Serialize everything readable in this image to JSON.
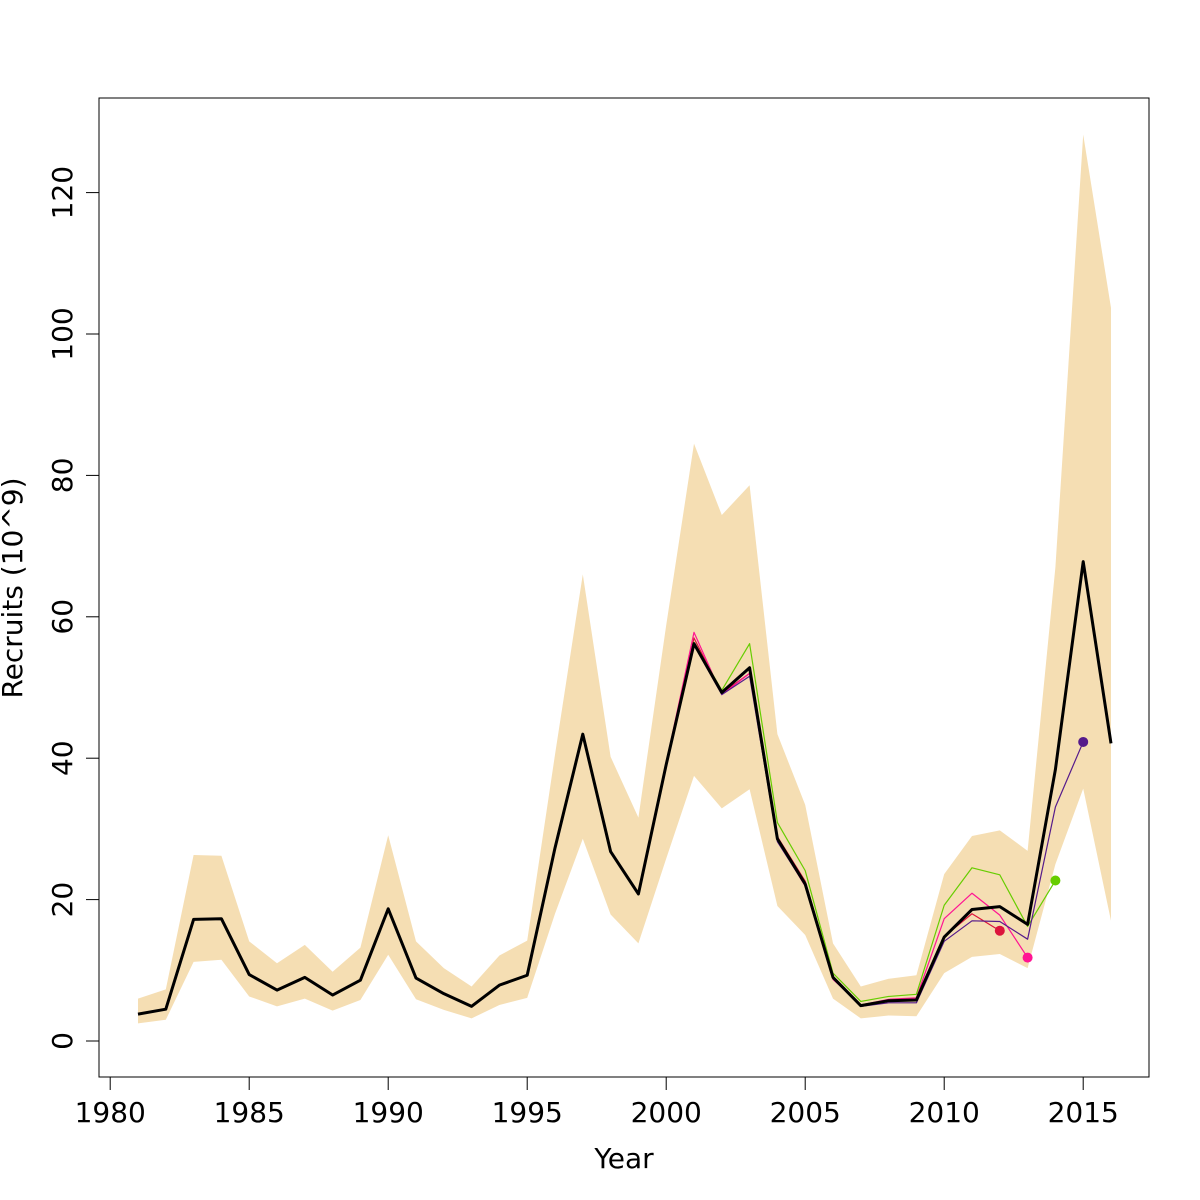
{
  "chart_data": {
    "type": "line",
    "title": "",
    "xlabel": "Year",
    "ylabel": "Recruits (10^9)",
    "xlim": [
      1980,
      2016
    ],
    "ylim": [
      0,
      130
    ],
    "xticks": [
      1980,
      1985,
      1990,
      1995,
      2000,
      2005,
      2010,
      2015
    ],
    "yticks": [
      0,
      20,
      40,
      60,
      80,
      100,
      120
    ],
    "grid": false,
    "legend": "none",
    "band": {
      "color": "#f5deb3",
      "x": [
        1981,
        1982,
        1983,
        1984,
        1985,
        1986,
        1987,
        1988,
        1989,
        1990,
        1991,
        1992,
        1993,
        1994,
        1995,
        1996,
        1997,
        1998,
        1999,
        2000,
        2001,
        2002,
        2003,
        2004,
        2005,
        2006,
        2007,
        2008,
        2009,
        2010,
        2011,
        2012,
        2013,
        2014,
        2015,
        2016
      ],
      "lower": [
        2.5,
        3.0,
        11.2,
        11.5,
        6.3,
        4.9,
        6.0,
        4.3,
        5.8,
        12.2,
        5.9,
        4.4,
        3.2,
        5.1,
        6.1,
        18.0,
        28.6,
        17.9,
        13.8,
        25.8,
        37.5,
        32.9,
        35.6,
        19.1,
        15.0,
        6.0,
        3.2,
        3.6,
        3.5,
        9.6,
        11.9,
        12.3,
        10.3,
        25.0,
        35.7,
        17.0
      ],
      "upper": [
        6.0,
        7.3,
        26.3,
        26.2,
        14.1,
        11.0,
        13.6,
        9.8,
        13.2,
        29.1,
        14.1,
        10.3,
        7.7,
        12.1,
        14.2,
        40.5,
        66.0,
        40.2,
        31.6,
        58.8,
        84.5,
        74.4,
        78.6,
        43.4,
        33.4,
        13.8,
        7.7,
        8.8,
        9.3,
        23.6,
        29.0,
        29.8,
        26.9,
        67.0,
        128.2,
        103.7
      ]
    },
    "series": [
      {
        "color": "#000000",
        "x": [
          1981,
          1982,
          1983,
          1984,
          1985,
          1986,
          1987,
          1988,
          1989,
          1990,
          1991,
          1992,
          1993,
          1994,
          1995,
          1996,
          1997,
          1998,
          1999,
          2000,
          2001,
          2002,
          2003,
          2004,
          2005,
          2006,
          2007,
          2008,
          2009,
          2010,
          2011,
          2012,
          2013,
          2014,
          2015,
          2016
        ],
        "values": [
          3.8,
          4.5,
          17.2,
          17.3,
          9.4,
          7.2,
          9.0,
          6.5,
          8.6,
          18.7,
          8.9,
          6.7,
          4.9,
          7.9,
          9.3,
          27.3,
          43.4,
          26.8,
          20.8,
          39.1,
          56.2,
          49.3,
          52.8,
          28.6,
          22.2,
          9.0,
          5.0,
          5.7,
          5.8,
          14.7,
          18.6,
          19.0,
          16.5,
          38.4,
          67.8,
          42.1
        ]
      },
      {
        "color": "#dc143c",
        "x": [
          1981,
          1982,
          1983,
          1984,
          1985,
          1986,
          1987,
          1988,
          1989,
          1990,
          1991,
          1992,
          1993,
          1994,
          1995,
          1996,
          1997,
          1998,
          1999,
          2000,
          2001,
          2002,
          2003,
          2004,
          2005,
          2006,
          2007,
          2008,
          2009,
          2010,
          2011,
          2012
        ],
        "values": [
          3.8,
          4.5,
          17.2,
          17.3,
          9.4,
          7.2,
          9.0,
          6.5,
          8.6,
          18.7,
          8.9,
          6.7,
          4.9,
          7.9,
          9.3,
          27.3,
          43.4,
          26.8,
          20.8,
          39.1,
          57.0,
          49.2,
          52.0,
          28.9,
          22.6,
          9.1,
          5.1,
          5.8,
          5.9,
          14.8,
          18.0,
          15.6
        ],
        "end_marker": true
      },
      {
        "color": "#ff1493",
        "x": [
          2000,
          2001,
          2002,
          2003,
          2004,
          2005,
          2006,
          2007,
          2008,
          2009,
          2010,
          2011,
          2012,
          2013
        ],
        "values": [
          39.3,
          57.8,
          49.0,
          52.0,
          28.4,
          21.9,
          8.7,
          5.1,
          5.9,
          6.1,
          17.3,
          20.9,
          17.8,
          11.8
        ],
        "end_marker": true
      },
      {
        "color": "#66cd00",
        "x": [
          2000,
          2001,
          2002,
          2003,
          2004,
          2005,
          2006,
          2007,
          2008,
          2009,
          2010,
          2011,
          2012,
          2013,
          2014
        ],
        "values": [
          39.0,
          56.4,
          49.6,
          56.2,
          30.9,
          24.1,
          9.6,
          5.6,
          6.3,
          6.6,
          19.2,
          24.5,
          23.5,
          16.2,
          22.7
        ],
        "end_marker": true
      },
      {
        "color": "#551a8b",
        "x": [
          2000,
          2001,
          2002,
          2003,
          2004,
          2005,
          2006,
          2007,
          2008,
          2009,
          2010,
          2011,
          2012,
          2013,
          2014,
          2015
        ],
        "values": [
          39.0,
          56.0,
          49.0,
          51.6,
          28.2,
          22.0,
          8.8,
          4.9,
          5.4,
          5.4,
          14.1,
          17.0,
          16.9,
          14.4,
          33.1,
          42.3
        ],
        "end_marker": true
      }
    ]
  }
}
